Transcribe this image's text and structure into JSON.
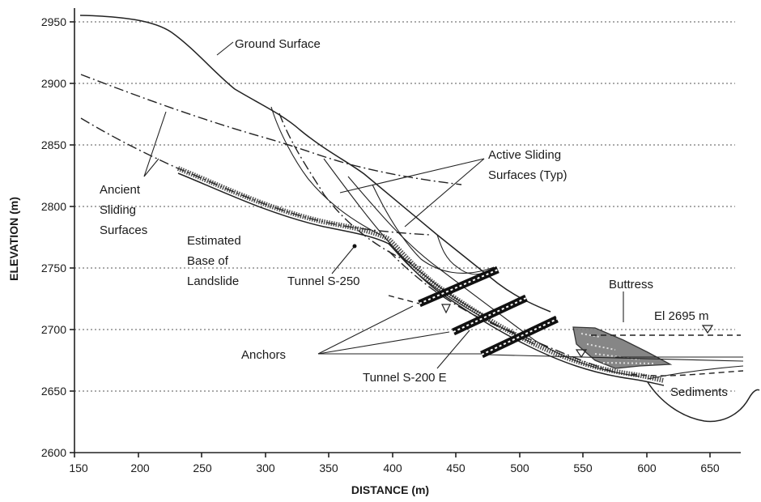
{
  "axes": {
    "xlabel": "DISTANCE (m)",
    "ylabel": "ELEVATION (m)",
    "xlim": [
      150,
      675
    ],
    "ylim": [
      2600,
      2950
    ],
    "x_ticks": [
      "150",
      "200",
      "250",
      "300",
      "350",
      "400",
      "450",
      "500",
      "550",
      "600",
      "650"
    ],
    "y_ticks": [
      "2600",
      "2650",
      "2700",
      "2750",
      "2800",
      "2850",
      "2900",
      "2950"
    ],
    "gridlines_y": [
      2650,
      2700,
      2750,
      2800,
      2850,
      2900,
      2950
    ]
  },
  "labels": {
    "ground_surface": "Ground Surface",
    "ancient_1": "Ancient",
    "ancient_2": "Sliding",
    "ancient_3": "Surfaces",
    "active_1": "Active Sliding",
    "active_2": "Surfaces (Typ)",
    "base_1": "Estimated",
    "base_2": "Base of",
    "base_3": "Landslide",
    "tunnel_250": "Tunnel S-250",
    "tunnel_200": "Tunnel S-200 E",
    "anchors": "Anchors",
    "buttress": "Buttress",
    "el_2695": "El 2695 m",
    "sediments": "Sediments"
  },
  "profiles": {
    "ground_surface": [
      [
        150,
        2954
      ],
      [
        180,
        2952
      ],
      [
        200,
        2948
      ],
      [
        215,
        2940
      ],
      [
        230,
        2928
      ],
      [
        250,
        2908
      ],
      [
        270,
        2890
      ],
      [
        290,
        2876
      ],
      [
        310,
        2862
      ],
      [
        330,
        2840
      ],
      [
        350,
        2822
      ],
      [
        370,
        2806
      ],
      [
        390,
        2787
      ],
      [
        410,
        2768
      ],
      [
        430,
        2750
      ],
      [
        450,
        2734
      ],
      [
        465,
        2722
      ],
      [
        480,
        2710
      ],
      [
        500,
        2700
      ]
    ],
    "ancient_surface_upper": [
      [
        150,
        2908
      ],
      [
        200,
        2885
      ],
      [
        250,
        2866
      ],
      [
        300,
        2848
      ],
      [
        350,
        2836
      ],
      [
        400,
        2830
      ],
      [
        450,
        2823
      ]
    ],
    "ancient_surface_lower": [
      [
        150,
        2873
      ],
      [
        200,
        2838
      ],
      [
        250,
        2815
      ],
      [
        300,
        2800
      ],
      [
        350,
        2790
      ],
      [
        400,
        2782
      ],
      [
        430,
        2775
      ]
    ],
    "estimated_base_landslide": [
      [
        230,
        2828
      ],
      [
        270,
        2808
      ],
      [
        310,
        2792
      ],
      [
        350,
        2780
      ],
      [
        380,
        2768
      ],
      [
        400,
        2760
      ],
      [
        420,
        2740
      ],
      [
        450,
        2715
      ],
      [
        480,
        2692
      ],
      [
        510,
        2675
      ],
      [
        540,
        2664
      ],
      [
        570,
        2658
      ],
      [
        600,
        2652
      ],
      [
        630,
        2648
      ]
    ],
    "sediments_basin": [
      [
        600,
        2660
      ],
      [
        620,
        2635
      ],
      [
        640,
        2624
      ],
      [
        660,
        2628
      ],
      [
        675,
        2645
      ]
    ],
    "buttress": [
      [
        545,
        2702
      ],
      [
        560,
        2700
      ],
      [
        590,
        2690
      ],
      [
        620,
        2675
      ],
      [
        600,
        2668
      ],
      [
        570,
        2672
      ],
      [
        548,
        2690
      ]
    ],
    "water_level": {
      "elevation": 2695,
      "x_from": 555,
      "x_to": 675
    },
    "tunnels": [
      {
        "from": [
          420,
          2720
        ],
        "to": [
          480,
          2746
        ]
      },
      {
        "from": [
          450,
          2695
        ],
        "to": [
          508,
          2722
        ]
      },
      {
        "from": [
          470,
          2680
        ],
        "to": [
          525,
          2707
        ]
      }
    ],
    "anchors_from": [
      340,
      2680
    ],
    "anchors_to": [
      [
        420,
        2720
      ],
      [
        450,
        2695
      ],
      [
        470,
        2680
      ]
    ]
  }
}
